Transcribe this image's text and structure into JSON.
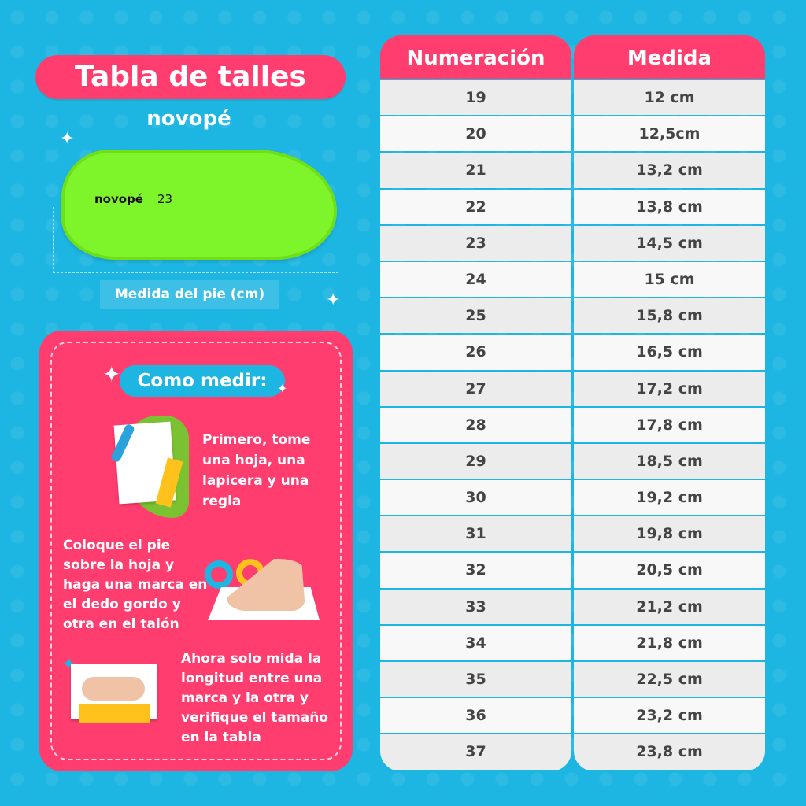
{
  "title": "Tabla de talles",
  "brand": "novopé",
  "insole": {
    "brand": "novopé",
    "size": "23"
  },
  "measure_label": "Medida del pie (cm)",
  "how_to": {
    "title": "Como medir:",
    "steps": [
      "Primero, tome una hoja, una lapicera y una regla",
      "Coloque el pie sobre la hoja y haga una marca en el dedo gordo y otra en el talón",
      "Ahora solo mida la longitud entre una marca y la otra y verifique el tamaño en la tabla"
    ]
  },
  "table": {
    "headers": [
      "Numeración",
      "Medida"
    ],
    "rows": [
      [
        "19",
        "12 cm"
      ],
      [
        "20",
        "12,5cm"
      ],
      [
        "21",
        "13,2 cm"
      ],
      [
        "22",
        "13,8 cm"
      ],
      [
        "23",
        "14,5 cm"
      ],
      [
        "24",
        "15 cm"
      ],
      [
        "25",
        "15,8 cm"
      ],
      [
        "26",
        "16,5 cm"
      ],
      [
        "27",
        "17,2 cm"
      ],
      [
        "28",
        "17,8 cm"
      ],
      [
        "29",
        "18,5 cm"
      ],
      [
        "30",
        "19,2 cm"
      ],
      [
        "31",
        "19,8 cm"
      ],
      [
        "32",
        "20,5 cm"
      ],
      [
        "33",
        "21,2 cm"
      ],
      [
        "34",
        "21,8 cm"
      ],
      [
        "35",
        "22,5 cm"
      ],
      [
        "36",
        "23,2 cm"
      ],
      [
        "37",
        "23,8 cm"
      ]
    ]
  },
  "colors": {
    "background": "#1db6e2",
    "accent": "#ff3d6f",
    "insole": "#7ef52a"
  }
}
